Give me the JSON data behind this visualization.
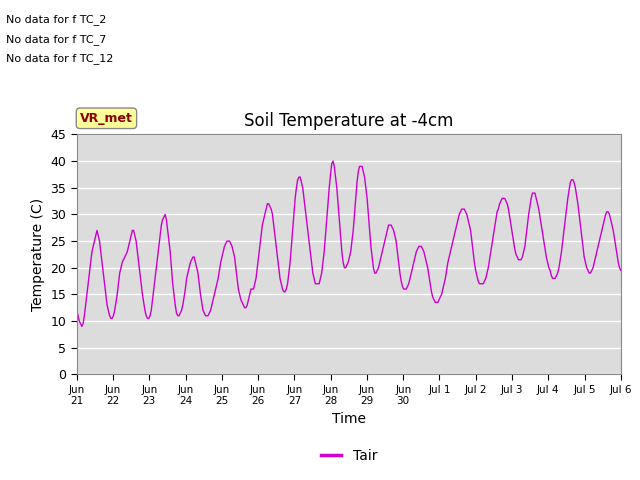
{
  "title": "Soil Temperature at -4cm",
  "xlabel": "Time",
  "ylabel": "Temperature (C)",
  "ylim": [
    0,
    45
  ],
  "yticks": [
    0,
    5,
    10,
    15,
    20,
    25,
    30,
    35,
    40,
    45
  ],
  "line_color": "#CC00CC",
  "background_color": "#DCDCDC",
  "figure_bg": "#FFFFFF",
  "legend_label": "Tair",
  "annotation_lines": [
    "No data for f TC_2",
    "No data for f TC_7",
    "No data for f TC_12"
  ],
  "vr_met_label": "VR_met",
  "x_tick_labels": [
    "Jun\n21",
    "Jun\n22",
    "Jun\n23",
    "Jun\n24",
    "Jun\n25",
    "Jun\n26",
    "Jun\n27",
    "Jun\n28",
    "Jun\n29",
    "Jun\n30",
    "Jul 1",
    "Jul 2",
    "Jul 3",
    "Jul 4",
    "Jul 5",
    "Jul 6"
  ],
  "num_days": 16,
  "temperature_data": [
    12,
    11,
    10,
    9.5,
    9,
    9.5,
    11,
    13,
    15,
    17,
    19,
    21,
    23,
    24,
    25,
    26,
    27,
    26,
    25,
    23,
    21,
    19,
    17,
    15,
    13,
    12,
    11,
    10.5,
    10.5,
    11,
    12,
    13.5,
    15,
    17,
    19,
    20,
    21,
    21.5,
    22,
    22.5,
    23,
    24,
    25,
    26,
    27,
    27,
    26,
    25,
    23,
    21,
    19,
    17,
    15,
    13.5,
    12,
    11,
    10.5,
    10.5,
    11,
    12,
    14,
    16,
    18,
    20,
    22,
    24,
    26,
    28,
    29,
    29.5,
    30,
    29,
    27,
    25,
    23,
    20,
    17,
    15,
    13,
    11.5,
    11,
    11,
    11.5,
    12,
    13,
    14.5,
    16,
    18,
    19,
    20,
    21,
    21.5,
    22,
    22,
    21,
    20,
    19,
    17,
    15,
    13.5,
    12,
    11.5,
    11,
    11,
    11,
    11.5,
    12,
    13,
    14,
    15,
    16,
    17,
    18,
    19.5,
    21,
    22,
    23,
    24,
    24.5,
    25,
    25,
    25,
    24.5,
    24,
    23,
    22,
    20,
    18,
    16,
    15,
    14,
    13.5,
    13,
    12.5,
    12.5,
    13,
    14,
    15,
    16,
    16,
    16,
    17,
    18,
    20,
    22,
    24,
    26,
    28,
    29,
    30,
    31,
    32,
    32,
    31.5,
    31,
    30,
    28,
    26,
    24,
    22,
    20,
    18,
    17,
    16,
    15.5,
    15.5,
    16,
    17,
    19,
    21,
    24,
    27,
    30,
    33,
    35,
    36.5,
    37,
    37,
    36,
    35,
    33,
    31,
    29,
    27,
    25,
    23,
    21,
    19,
    18,
    17,
    17,
    17,
    17,
    18,
    19,
    21,
    23,
    26,
    29,
    32,
    35,
    37.5,
    39.5,
    40,
    39,
    37,
    35,
    32,
    29,
    26,
    23,
    21,
    20,
    20,
    20.5,
    21,
    22,
    23,
    25,
    27,
    30,
    33,
    36,
    38,
    39,
    39,
    39,
    38,
    37,
    35,
    33,
    30,
    27,
    24,
    22,
    20,
    19,
    19,
    19.5,
    20,
    21,
    22,
    23,
    24,
    25,
    26,
    27,
    28,
    28,
    28,
    27.5,
    27,
    26,
    25,
    23,
    21,
    19,
    17.5,
    16.5,
    16,
    16,
    16,
    16.5,
    17,
    18,
    19,
    20,
    21,
    22,
    23,
    23.5,
    24,
    24,
    24,
    23.5,
    23,
    22,
    21,
    20,
    18.5,
    17,
    15.5,
    14.5,
    14,
    13.5,
    13.5,
    13.5,
    14,
    14.5,
    15,
    16,
    17,
    18,
    19.5,
    21,
    22,
    23,
    24,
    25,
    26,
    27,
    28,
    29,
    30,
    30.5,
    31,
    31,
    31,
    30.5,
    30,
    29,
    28,
    27,
    25,
    23,
    21,
    19.5,
    18.5,
    17.5,
    17,
    17,
    17,
    17,
    17.5,
    18,
    19,
    20,
    21.5,
    23,
    24.5,
    26,
    27.5,
    29,
    30.5,
    31,
    32,
    32.5,
    33,
    33,
    33,
    32.5,
    32,
    31,
    29.5,
    28,
    26.5,
    25,
    23.5,
    22.5,
    22,
    21.5,
    21.5,
    21.5,
    22,
    23,
    24,
    26,
    28,
    30,
    31.5,
    33,
    34,
    34,
    34,
    33,
    32,
    31,
    29.5,
    28,
    26.5,
    25,
    23.5,
    22,
    21,
    20,
    19.5,
    18.5,
    18,
    18,
    18,
    18.5,
    19,
    20,
    21.5,
    23,
    25,
    27,
    29,
    31,
    33,
    34.5,
    36,
    36.5,
    36.5,
    36,
    35,
    33.5,
    32,
    30,
    28,
    26,
    24,
    22,
    21,
    20,
    19.5,
    19,
    19,
    19.5,
    20,
    21,
    22,
    23,
    24,
    25,
    26,
    27,
    28,
    29,
    30,
    30.5,
    30.5,
    30,
    29,
    28,
    27,
    25.5,
    24,
    22.5,
    21,
    20,
    19.5
  ]
}
